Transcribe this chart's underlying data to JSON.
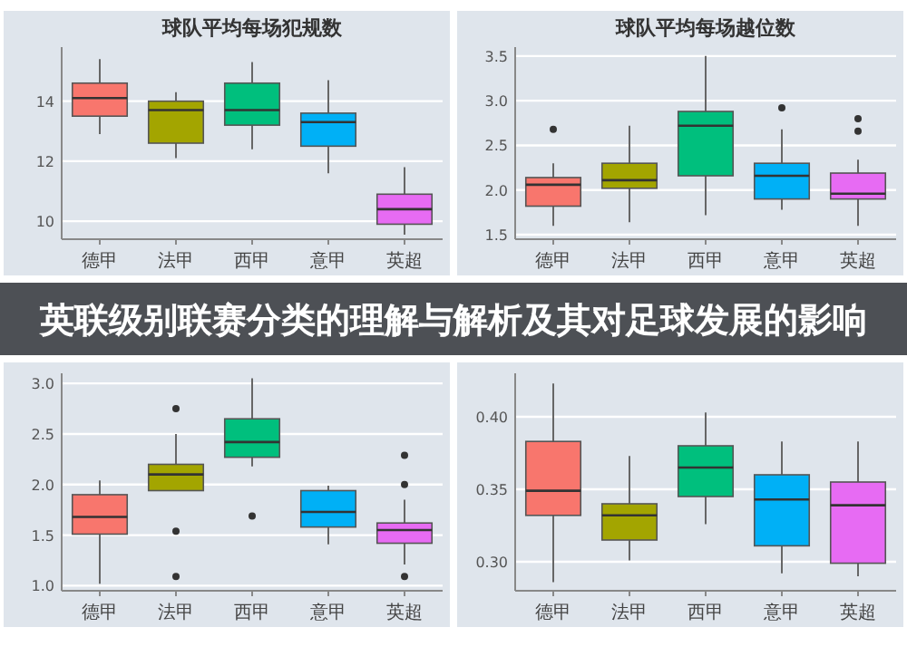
{
  "chart_data": [
    {
      "type": "box",
      "title": "球队平均每场犯规数",
      "categories": [
        "德甲",
        "法甲",
        "西甲",
        "意甲",
        "英超"
      ],
      "colors": [
        "#f8766d",
        "#a3a500",
        "#00bf7d",
        "#00b0f6",
        "#e76bf3"
      ],
      "ylim": [
        9.4,
        15.8
      ],
      "yticks": [
        10,
        12,
        14
      ],
      "grid": "y",
      "boxes": [
        {
          "low": 12.9,
          "q1": 13.5,
          "median": 14.1,
          "q3": 14.6,
          "high": 15.4
        },
        {
          "low": 12.1,
          "q1": 12.6,
          "median": 13.7,
          "q3": 14.0,
          "high": 14.3
        },
        {
          "low": 12.4,
          "q1": 13.2,
          "median": 13.7,
          "q3": 14.6,
          "high": 15.3
        },
        {
          "low": 11.6,
          "q1": 12.5,
          "median": 13.3,
          "q3": 13.6,
          "high": 14.7
        },
        {
          "low": 9.55,
          "q1": 9.9,
          "median": 10.4,
          "q3": 10.9,
          "high": 11.8
        }
      ]
    },
    {
      "type": "box",
      "title": "球队平均每场越位数",
      "categories": [
        "德甲",
        "法甲",
        "西甲",
        "意甲",
        "英超"
      ],
      "colors": [
        "#f8766d",
        "#a3a500",
        "#00bf7d",
        "#00b0f6",
        "#e76bf3"
      ],
      "ylim": [
        1.45,
        3.6
      ],
      "yticks": [
        {
          "value": 1.5,
          "label": "1.5"
        },
        {
          "value": 2,
          "label": "2.0"
        },
        {
          "value": 2.5,
          "label": "2.5"
        },
        {
          "value": 3,
          "label": "3.0"
        },
        {
          "value": 3.5,
          "label": "3.5"
        }
      ],
      "grid": "y",
      "boxes": [
        {
          "low": 1.6,
          "q1": 1.82,
          "median": 2.06,
          "q3": 2.14,
          "high": 2.3,
          "outliers": [
            2.68
          ]
        },
        {
          "low": 1.64,
          "q1": 2.02,
          "median": 2.11,
          "q3": 2.3,
          "high": 2.72
        },
        {
          "low": 1.72,
          "q1": 2.16,
          "median": 2.72,
          "q3": 2.88,
          "high": 3.5
        },
        {
          "low": 1.78,
          "q1": 1.9,
          "median": 2.16,
          "q3": 2.3,
          "high": 2.68,
          "outliers": [
            2.92
          ]
        },
        {
          "low": 1.6,
          "q1": 1.9,
          "median": 1.96,
          "q3": 2.19,
          "high": 2.34,
          "outliers": [
            2.66,
            2.8
          ]
        }
      ]
    },
    {
      "type": "other",
      "title": "英联级别联赛分类的理解与解析及其对足球发展的影响"
    },
    {
      "type": "box",
      "categories": [
        "德甲",
        "法甲",
        "西甲",
        "意甲",
        "英超"
      ],
      "colors": [
        "#f8766d",
        "#a3a500",
        "#00bf7d",
        "#00b0f6",
        "#e76bf3"
      ],
      "ylim": [
        0.95,
        3.1
      ],
      "yticks": [
        {
          "value": 1,
          "label": "1.0"
        },
        {
          "value": 1.5,
          "label": "1.5"
        },
        {
          "value": 2,
          "label": "2.0"
        },
        {
          "value": 2.5,
          "label": "2.5"
        },
        {
          "value": 3,
          "label": "3.0"
        }
      ],
      "grid": "y",
      "boxes": [
        {
          "low": 1.02,
          "q1": 1.51,
          "median": 1.68,
          "q3": 1.9,
          "high": 2.04
        },
        {
          "low": 1.94,
          "q1": 1.94,
          "median": 2.1,
          "q3": 2.2,
          "high": 2.5,
          "outliers": [
            1.09,
            1.54,
            2.75
          ]
        },
        {
          "low": 2.18,
          "q1": 2.27,
          "median": 2.42,
          "q3": 2.65,
          "high": 3.05,
          "outliers": [
            1.69
          ]
        },
        {
          "low": 1.41,
          "q1": 1.58,
          "median": 1.73,
          "q3": 1.94,
          "high": 1.99
        },
        {
          "low": 1.21,
          "q1": 1.42,
          "median": 1.55,
          "q3": 1.62,
          "high": 1.85,
          "outliers": [
            1.09,
            2.0,
            2.29
          ]
        }
      ]
    },
    {
      "type": "box",
      "categories": [
        "德甲",
        "法甲",
        "西甲",
        "意甲",
        "英超"
      ],
      "colors": [
        "#f8766d",
        "#a3a500",
        "#00bf7d",
        "#00b0f6",
        "#e76bf3"
      ],
      "ylim": [
        0.28,
        0.43
      ],
      "yticks": [
        {
          "value": 0.3,
          "label": "0.30"
        },
        {
          "value": 0.35,
          "label": "0.35"
        },
        {
          "value": 0.4,
          "label": "0.40"
        }
      ],
      "grid": "y",
      "boxes": [
        {
          "low": 0.286,
          "q1": 0.332,
          "median": 0.349,
          "q3": 0.383,
          "high": 0.423
        },
        {
          "low": 0.301,
          "q1": 0.315,
          "median": 0.332,
          "q3": 0.34,
          "high": 0.373
        },
        {
          "low": 0.326,
          "q1": 0.345,
          "median": 0.365,
          "q3": 0.38,
          "high": 0.403
        },
        {
          "low": 0.292,
          "q1": 0.311,
          "median": 0.343,
          "q3": 0.36,
          "high": 0.383
        },
        {
          "low": 0.29,
          "q1": 0.299,
          "median": 0.339,
          "q3": 0.355,
          "high": 0.383
        }
      ]
    }
  ]
}
